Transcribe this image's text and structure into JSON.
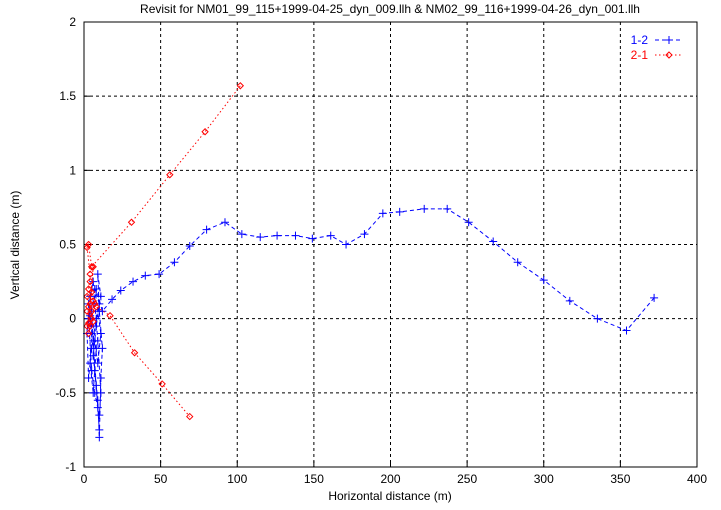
{
  "chart_data": {
    "type": "line",
    "title": "Revisit for NM01_99_115+1999-04-25_dyn_009.llh & NM02_99_116+1999-04-26_dyn_001.llh",
    "xlabel": "Horizontal distance (m)",
    "ylabel": "Vertical distance (m)",
    "xlim": [
      0,
      400
    ],
    "ylim": [
      -1,
      2
    ],
    "xticks": [
      0,
      50,
      100,
      150,
      200,
      250,
      300,
      350,
      400
    ],
    "yticks": [
      -1,
      -0.5,
      0,
      0.5,
      1,
      1.5,
      2
    ],
    "ytick_labels": [
      "-1",
      "-0.5",
      "0",
      "0.5",
      "1",
      "1.5",
      "2"
    ],
    "grid": true,
    "legend_position": "top-right",
    "series": [
      {
        "name": "1-2",
        "color": "#0000ff",
        "marker": "plus",
        "points": [
          [
            3,
            0.1
          ],
          [
            5,
            -0.1
          ],
          [
            4,
            -0.3
          ],
          [
            6,
            -0.5
          ],
          [
            8,
            -0.2
          ],
          [
            5,
            0.05
          ],
          [
            7,
            -0.35
          ],
          [
            9,
            -0.6
          ],
          [
            10,
            -0.75
          ],
          [
            8,
            -0.45
          ],
          [
            6,
            -0.15
          ],
          [
            4,
            0.02
          ],
          [
            9,
            -0.3
          ],
          [
            11,
            -0.1
          ],
          [
            7,
            0.2
          ],
          [
            10,
            0.1
          ],
          [
            8,
            -0.05
          ],
          [
            6,
            -0.25
          ],
          [
            9,
            -0.55
          ],
          [
            10,
            -0.8
          ],
          [
            11,
            -0.4
          ],
          [
            12,
            -0.2
          ],
          [
            10,
            0.05
          ],
          [
            9,
            0.3
          ],
          [
            11,
            0.15
          ],
          [
            8,
            0.0
          ],
          [
            5,
            -0.2
          ],
          [
            3,
            -0.4
          ],
          [
            2,
            -0.1
          ],
          [
            4,
            0.15
          ],
          [
            6,
            0.25
          ],
          [
            9,
            -0.15
          ],
          [
            11,
            -0.5
          ],
          [
            10,
            -0.65
          ],
          [
            7,
            -0.5
          ],
          [
            5,
            -0.35
          ],
          [
            3,
            0.0
          ],
          [
            6,
            0.1
          ],
          [
            8,
            0.2
          ],
          [
            12,
            0.05
          ],
          [
            18.3,
            0.13
          ],
          [
            24,
            0.19
          ],
          [
            32,
            0.25
          ],
          [
            40,
            0.29
          ],
          [
            49,
            0.3
          ],
          [
            59,
            0.38
          ],
          [
            69,
            0.49
          ],
          [
            80,
            0.6
          ],
          [
            92,
            0.65
          ],
          [
            103,
            0.57
          ],
          [
            115,
            0.55
          ],
          [
            126,
            0.56
          ],
          [
            138,
            0.56
          ],
          [
            149,
            0.54
          ],
          [
            161,
            0.56
          ],
          [
            171,
            0.5
          ],
          [
            183,
            0.57
          ],
          [
            195,
            0.71
          ],
          [
            206,
            0.72
          ],
          [
            222,
            0.74
          ],
          [
            237,
            0.74
          ],
          [
            251,
            0.65
          ],
          [
            267,
            0.52
          ],
          [
            283,
            0.38
          ],
          [
            300,
            0.26
          ],
          [
            317,
            0.12
          ],
          [
            335,
            0.0
          ],
          [
            354,
            -0.08
          ],
          [
            372,
            0.14
          ]
        ]
      },
      {
        "name": "2-1",
        "color": "#ff0000",
        "marker": "diamond",
        "points": [
          [
            102,
            1.57
          ],
          [
            79,
            1.26
          ],
          [
            56,
            0.97
          ],
          [
            31,
            0.65
          ],
          [
            5,
            0.35
          ],
          [
            3,
            0.5
          ],
          [
            2,
            0.48
          ],
          [
            4,
            0.3
          ],
          [
            3,
            0.2
          ],
          [
            6,
            0.12
          ],
          [
            2,
            0.05
          ],
          [
            4,
            -0.05
          ],
          [
            3,
            -0.1
          ],
          [
            5,
            0.0
          ],
          [
            7,
            0.1
          ],
          [
            4,
            0.25
          ],
          [
            2,
            0.15
          ],
          [
            6,
            -0.02
          ],
          [
            3,
            0.08
          ],
          [
            5,
            0.18
          ],
          [
            2,
            -0.05
          ],
          [
            4,
            0.1
          ],
          [
            6,
            0.35
          ],
          [
            3,
            -0.03
          ],
          [
            5,
            0.05
          ],
          [
            8,
            0.08
          ],
          [
            17,
            0.02
          ],
          [
            33,
            -0.23
          ],
          [
            51,
            -0.44
          ],
          [
            69,
            -0.66
          ]
        ]
      }
    ]
  }
}
